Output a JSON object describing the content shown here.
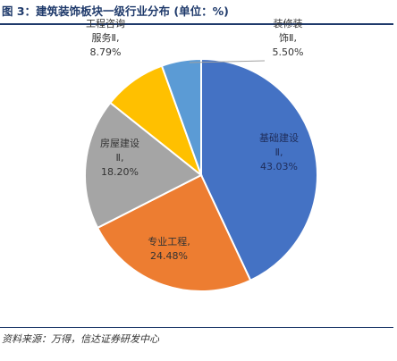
{
  "figure": {
    "title": "图 3：建筑装饰板块一级行业分布 (单位：%)",
    "source": "资料来源：万得，信达证券研发中心"
  },
  "chart_data": {
    "type": "pie",
    "title": "建筑装饰板块一级行业分布 (单位：%)",
    "slices": [
      {
        "label_lines": [
          "基础建设",
          "Ⅱ,",
          "43.03%"
        ],
        "value": 43.03,
        "color": "#4472c4",
        "label_color": "#1f2d5a"
      },
      {
        "label_lines": [
          "专业工程,",
          "24.48%"
        ],
        "value": 24.48,
        "color": "#ed7d31",
        "label_color": "#333333"
      },
      {
        "label_lines": [
          "房屋建设",
          "Ⅱ,",
          "18.20%"
        ],
        "value": 18.2,
        "color": "#a5a5a5",
        "label_color": "#333333"
      },
      {
        "label_lines": [
          "工程咨询",
          "服务Ⅱ,",
          "8.79%"
        ],
        "value": 8.79,
        "color": "#ffc000",
        "label_color": "#333333"
      },
      {
        "label_lines": [
          "装修装",
          "饰Ⅱ,",
          "5.50%"
        ],
        "value": 5.5,
        "color": "#5b9bd5",
        "label_color": "#333333"
      }
    ],
    "legend": "none"
  }
}
